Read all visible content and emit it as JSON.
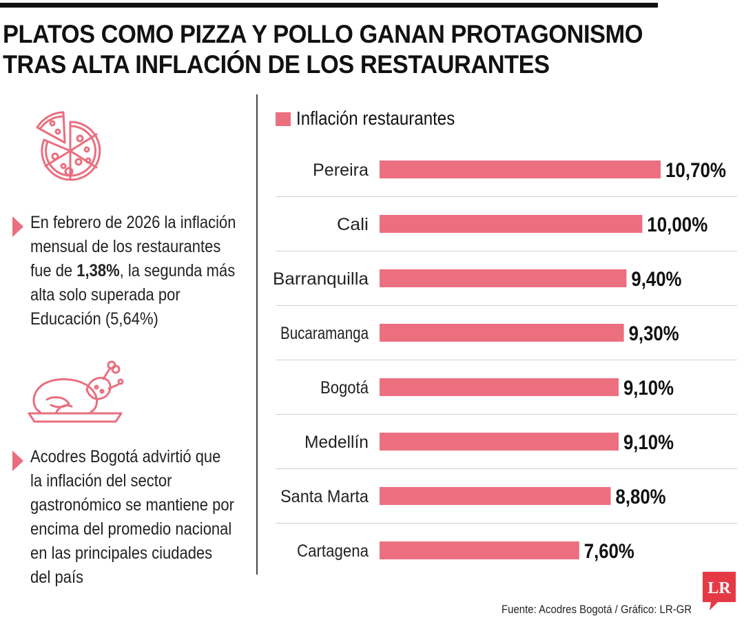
{
  "headline": {
    "line1": "PLATOS COMO PIZZA Y POLLO GANAN PROTAGONISMO",
    "line2": "TRAS ALTA INFLACIÓN DE LOS RESTAURANTES"
  },
  "icons": {
    "first": "pizza-icon",
    "second": "roast-chicken-icon"
  },
  "notes": [
    {
      "before": "En febrero de 2026 la inflación mensual de los restaurantes fue de ",
      "bold": "1,38%",
      "after": ", la segunda más alta solo superada por Educación (5,64%)"
    },
    {
      "text": "Acodres Bogotá advirtió que la inflación del sector gastronómico se mantiene por encima del promedio nacional en las principales ciudades del país"
    }
  ],
  "colors": {
    "bar": "#ec6f80",
    "accent": "#e96e7f",
    "logo_bg": "#e63946",
    "divider": "#444444"
  },
  "chart_data": {
    "type": "bar",
    "orientation": "horizontal",
    "categories": [
      "Pereira",
      "Cali",
      "Barranquilla",
      "Bucaramanga",
      "Bogotá",
      "Medellín",
      "Santa Marta",
      "Cartagena"
    ],
    "series": [
      {
        "name": "Inflación restaurantes",
        "values": [
          10.7,
          10.0,
          9.4,
          9.3,
          9.1,
          9.1,
          8.8,
          7.6
        ],
        "labels": [
          "10,70%",
          "10,00%",
          "9,40%",
          "9,30%",
          "9,10%",
          "9,10%",
          "8,80%",
          "7,60%"
        ]
      }
    ],
    "xlim": [
      0,
      10.7
    ],
    "legend": "top-left",
    "grid": false
  },
  "source": "Fuente: Acodres Bogotá / Gráfico: LR-GR",
  "logo": "LR"
}
